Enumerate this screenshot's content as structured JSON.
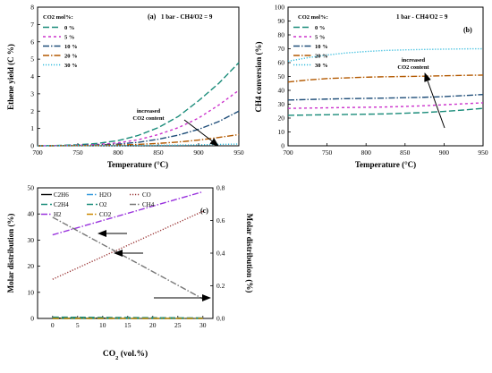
{
  "chart_data": [
    {
      "panel": "(a)",
      "type": "line",
      "condition": "1 bar - CH4/O2 = 9",
      "xlabel": "Temperature (°C)",
      "ylabel": "Ethene yield (C %)",
      "xlim": [
        700,
        950
      ],
      "ylim": [
        0,
        8
      ],
      "xticks": [
        700,
        750,
        800,
        850,
        900,
        950
      ],
      "yticks": [
        0,
        1,
        2,
        3,
        4,
        5,
        6,
        7,
        8
      ],
      "legend_title": "CO2 mol%:",
      "legend_position": "top-left",
      "annotation": [
        "increased",
        "CO2 content"
      ],
      "x": [
        700,
        725,
        750,
        775,
        800,
        825,
        850,
        875,
        900,
        925,
        950
      ],
      "series": [
        {
          "name": "0 %",
          "color": "#1a8c7a",
          "dash": "long",
          "values": [
            0.0,
            0.02,
            0.06,
            0.14,
            0.3,
            0.6,
            1.05,
            1.7,
            2.6,
            3.6,
            4.8
          ]
        },
        {
          "name": "5 %",
          "color": "#cc33cc",
          "dash": "short",
          "values": [
            0.0,
            0.01,
            0.03,
            0.08,
            0.17,
            0.35,
            0.65,
            1.05,
            1.6,
            2.35,
            3.2
          ]
        },
        {
          "name": "10 %",
          "color": "#1f4e79",
          "dash": "dashdot",
          "values": [
            0.0,
            0.01,
            0.02,
            0.05,
            0.1,
            0.2,
            0.38,
            0.62,
            0.95,
            1.4,
            2.0
          ]
        },
        {
          "name": "20 %",
          "color": "#b35900",
          "dash": "dashdot",
          "values": [
            0.0,
            0.0,
            0.01,
            0.02,
            0.04,
            0.08,
            0.14,
            0.22,
            0.33,
            0.48,
            0.65
          ]
        },
        {
          "name": "30 %",
          "color": "#33bbdd",
          "dash": "dot",
          "values": [
            0.0,
            0.0,
            0.0,
            0.01,
            0.01,
            0.02,
            0.03,
            0.04,
            0.06,
            0.08,
            0.1
          ]
        }
      ]
    },
    {
      "panel": "(b)",
      "type": "line",
      "condition": "1 bar - CH4/O2 = 9",
      "xlabel": "Temperature (°C)",
      "ylabel": "CH4 conversion (%)",
      "xlim": [
        700,
        950
      ],
      "ylim": [
        0,
        100
      ],
      "xticks": [
        700,
        750,
        800,
        850,
        900,
        950
      ],
      "yticks": [
        0,
        10,
        20,
        30,
        40,
        50,
        60,
        70,
        80,
        90,
        100
      ],
      "legend_title": "CO2 mol%:",
      "legend_position": "top-left",
      "annotation": [
        "increased",
        "CO2 content"
      ],
      "x": [
        700,
        725,
        750,
        775,
        800,
        825,
        850,
        875,
        900,
        925,
        950
      ],
      "series": [
        {
          "name": "0 %",
          "color": "#1a8c7a",
          "dash": "long",
          "values": [
            22.0,
            22.2,
            22.4,
            22.6,
            22.8,
            23.0,
            23.5,
            24.0,
            24.8,
            25.8,
            27.0
          ]
        },
        {
          "name": "5 %",
          "color": "#cc33cc",
          "dash": "short",
          "values": [
            27.0,
            27.2,
            27.4,
            27.6,
            27.8,
            28.0,
            28.4,
            28.9,
            29.6,
            30.3,
            31.0
          ]
        },
        {
          "name": "10 %",
          "color": "#1f4e79",
          "dash": "dashdot",
          "values": [
            33.0,
            33.4,
            33.7,
            34.0,
            34.2,
            34.4,
            34.7,
            35.0,
            35.5,
            36.2,
            37.0
          ]
        },
        {
          "name": "20 %",
          "color": "#b35900",
          "dash": "dashdot",
          "values": [
            46.0,
            47.5,
            48.5,
            49.0,
            49.5,
            49.8,
            50.0,
            50.2,
            50.5,
            50.8,
            51.0
          ]
        },
        {
          "name": "30 %",
          "color": "#33bbdd",
          "dash": "dot",
          "values": [
            61.0,
            63.5,
            65.5,
            67.0,
            68.0,
            68.8,
            69.2,
            69.5,
            69.7,
            69.9,
            70.0
          ]
        }
      ]
    },
    {
      "panel": "(c)",
      "type": "line",
      "xlabel": "CO2 (vol.%)",
      "ylabel": "Molar distribution (%)",
      "ylabel_right": "Molar distribution (%)",
      "xlim": [
        -3,
        32
      ],
      "ylim": [
        0,
        50
      ],
      "ylim_right": [
        0,
        0.8
      ],
      "xticks": [
        0,
        5,
        10,
        15,
        20,
        25,
        30
      ],
      "yticks": [
        0,
        10,
        20,
        30,
        40,
        50
      ],
      "yticks_right": [
        0.0,
        0.2,
        0.4,
        0.6,
        0.8
      ],
      "yticks_right_labels": [
        "0.0",
        "0.2",
        "0.4",
        "0.6",
        "0.8"
      ],
      "legend_position": "top-left",
      "legend": [
        "C2H6",
        "C2H4",
        "H2",
        "H2O",
        "O2",
        "CO2",
        "CO",
        "CH4"
      ],
      "x": [
        0,
        30
      ],
      "series": [
        {
          "name": "C2H6",
          "color": "#000000",
          "dash": "solid",
          "axis": "left",
          "values": [
            0.1,
            0.05
          ]
        },
        {
          "name": "C2H4",
          "color": "#1a8c7a",
          "dash": "long",
          "axis": "left",
          "values": [
            0.5,
            0.2
          ]
        },
        {
          "name": "H2",
          "color": "#9933dd",
          "dash": "dashdot",
          "axis": "left",
          "values": [
            32.0,
            48.5
          ]
        },
        {
          "name": "H2O",
          "color": "#3399dd",
          "dash": "dashdot",
          "axis": "left",
          "values": [
            0.0,
            0.0
          ]
        },
        {
          "name": "O2",
          "color": "#1a8c7a",
          "dash": "long",
          "axis": "left",
          "values": [
            0.0,
            0.0
          ]
        },
        {
          "name": "CO2",
          "color": "#cc8800",
          "dash": "dashdot",
          "axis": "left",
          "values": [
            0.0,
            0.0
          ]
        },
        {
          "name": "CO",
          "color": "#993333",
          "dash": "dot",
          "axis": "left",
          "values": [
            15.0,
            41.0
          ]
        },
        {
          "name": "CH4",
          "color": "#777777",
          "dash": "dashdot",
          "axis": "right",
          "values": [
            0.62,
            0.12
          ]
        }
      ]
    }
  ]
}
